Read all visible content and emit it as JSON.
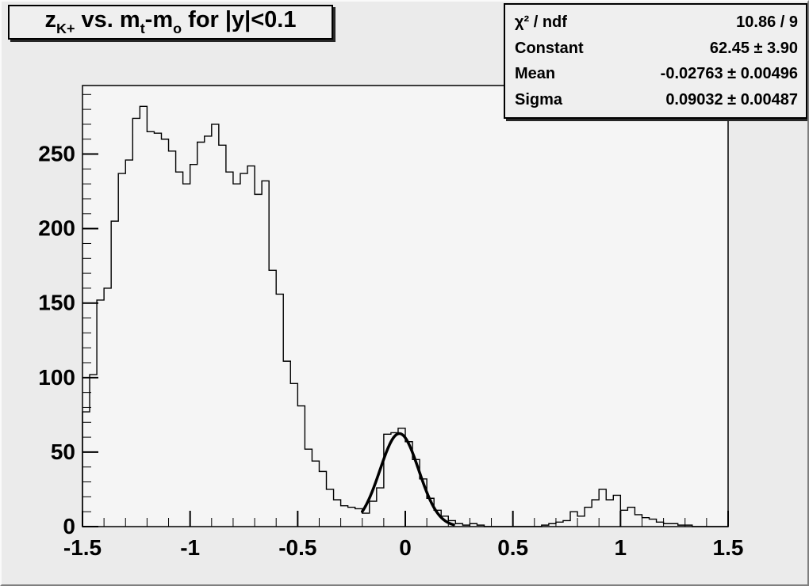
{
  "colors": {
    "canvas_bg": "#ebebeb",
    "frame_bg": "#f5f5f5",
    "pave_bg": "#efefef",
    "line_color": "#000000",
    "text_color": "#000000"
  },
  "title_pave": {
    "plain_text": "z_{K+} vs. m_{t}-m_{o} for |y|<0.1",
    "segments": [
      {
        "text": "z"
      },
      {
        "sub": "K+"
      },
      {
        "text": " vs. m"
      },
      {
        "sub": "t"
      },
      {
        "text": "-m"
      },
      {
        "sub": "o"
      },
      {
        "text": " for |y|<0.1"
      }
    ]
  },
  "stats_pave": {
    "rows": [
      {
        "label": "χ² / ndf",
        "value": "10.86 / 9"
      },
      {
        "label": "Constant",
        "value": "62.45 ± 3.90"
      },
      {
        "label": "Mean",
        "value": "-0.02763 ± 0.00496"
      },
      {
        "label": "Sigma",
        "value": "0.09032 ± 0.00487"
      }
    ]
  },
  "chart_data": {
    "type": "bar",
    "subtype": "step-histogram",
    "title": "z_{K+} vs. m_{t}-m_{o} for |y|<0.1",
    "xlabel": "",
    "ylabel": "",
    "x_range": [
      -1.5,
      1.5
    ],
    "y_range": [
      0,
      296
    ],
    "n_bins": 90,
    "bin_width": 0.033333,
    "values": [
      77,
      102,
      152,
      160,
      205,
      237,
      246,
      274,
      282,
      265,
      264,
      260,
      252,
      238,
      230,
      243,
      258,
      262,
      270,
      256,
      238,
      230,
      237,
      242,
      223,
      232,
      172,
      156,
      111,
      96,
      81,
      52,
      44,
      37,
      25,
      18,
      14,
      13,
      12,
      9,
      17,
      26,
      62,
      63,
      66,
      57,
      45,
      32,
      19,
      11,
      7,
      4,
      2,
      1,
      2,
      1,
      0,
      0,
      0,
      0,
      0,
      0,
      0,
      0,
      1,
      2,
      3,
      4,
      10,
      7,
      13,
      18,
      25,
      18,
      21,
      11,
      13,
      8,
      6,
      5,
      3,
      2,
      2,
      1,
      1,
      0,
      0,
      0,
      0,
      0
    ],
    "x_major_ticks": [
      -1.5,
      -1,
      -0.5,
      0,
      0.5,
      1,
      1.5
    ],
    "x_major_labels": [
      "-1.5",
      "-1",
      "-0.5",
      "0",
      "0.5",
      "1",
      "1.5"
    ],
    "x_minor_step": 0.1,
    "y_major_ticks": [
      0,
      50,
      100,
      150,
      200,
      250
    ],
    "y_major_labels": [
      "0",
      "50",
      "100",
      "150",
      "200",
      "250"
    ],
    "y_minor_step": 10,
    "grid": false,
    "legend": false,
    "fit": {
      "type": "gaussian",
      "constant": 62.45,
      "mean": -0.02763,
      "sigma": 0.09032,
      "chi2": 10.86,
      "ndf": 9,
      "draw_range": [
        -0.2,
        0.225
      ],
      "line_width": 3.5
    }
  }
}
